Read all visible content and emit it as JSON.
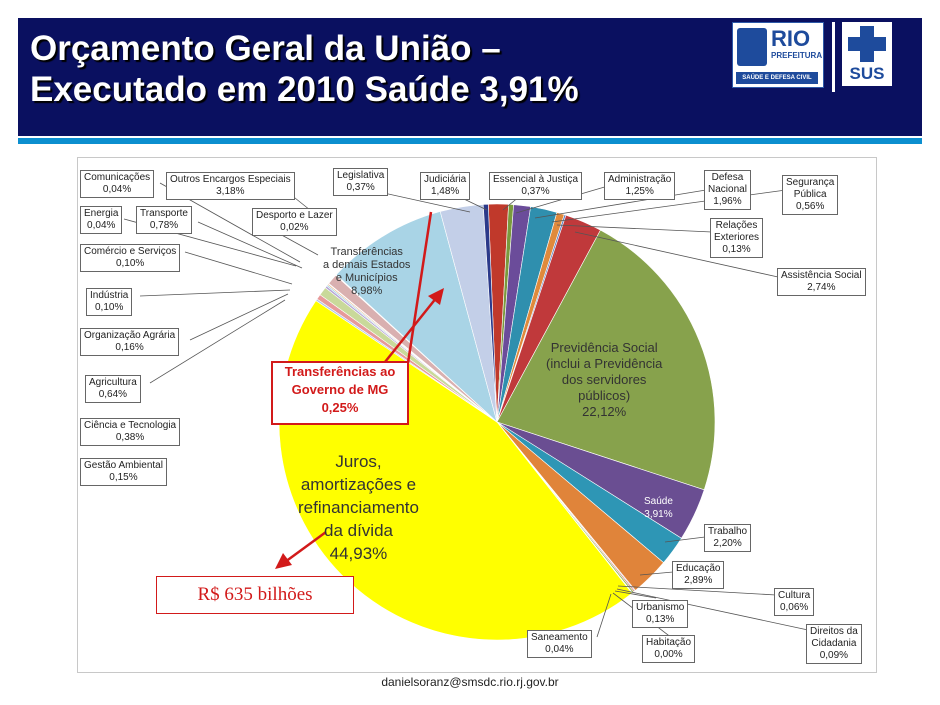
{
  "header": {
    "title_line1": "Orçamento Geral da União –",
    "title_line2": "Executado em 2010 Saúde 3,91%",
    "logo_rio": {
      "name": "RIO",
      "sub": "PREFEITURA",
      "strip": "SAÚDE E DEFESA CIVIL"
    },
    "logo_sus": {
      "name": "SUS"
    }
  },
  "colors": {
    "header_bg": "#0a1060",
    "stripe": "#0c8fcf",
    "highlight": "#d21a1a"
  },
  "chart_data": {
    "type": "pie",
    "title": "",
    "slices": [
      {
        "label": "Judiciária",
        "value": 1.48,
        "color": "#c0392b"
      },
      {
        "label": "Essencial à Justiça",
        "value": 0.37,
        "color": "#7a9a3c"
      },
      {
        "label": "Administração",
        "value": 1.25,
        "color": "#6b4c9a"
      },
      {
        "label": "Defesa Nacional",
        "value": 1.96,
        "color": "#2f8fae"
      },
      {
        "label": "Segurança Pública",
        "value": 0.56,
        "color": "#e08a3c"
      },
      {
        "label": "Relações Exteriores",
        "value": 0.13,
        "color": "#5b7fc4"
      },
      {
        "label": "Assistência Social",
        "value": 2.74,
        "color": "#c0393b"
      },
      {
        "label": "Previdência Social (inclui a Previdência dos servidores públicos)",
        "value": 22.12,
        "color": "#87a24c"
      },
      {
        "label": "Saúde",
        "value": 3.91,
        "color": "#6a4e92"
      },
      {
        "label": "Trabalho",
        "value": 2.2,
        "color": "#2e96b5"
      },
      {
        "label": "Educação",
        "value": 2.89,
        "color": "#e0843a"
      },
      {
        "label": "Cultura",
        "value": 0.06,
        "color": "#7f9fd6"
      },
      {
        "label": "Direitos da Cidadania",
        "value": 0.09,
        "color": "#d25050"
      },
      {
        "label": "Urbanismo",
        "value": 0.13,
        "color": "#9aba5a"
      },
      {
        "label": "Habitação",
        "value": 0.0,
        "color": "#8a6ab4"
      },
      {
        "label": "Saneamento",
        "value": 0.04,
        "color": "#47b0cc"
      },
      {
        "label": "Juros, amortizações e refinanciamento da dívida",
        "value": 44.93,
        "color": "#ffff00"
      },
      {
        "label": "Gestão Ambiental",
        "value": 0.15,
        "color": "#b5c7e8"
      },
      {
        "label": "Ciência e Tecnologia",
        "value": 0.38,
        "color": "#e79a9a"
      },
      {
        "label": "Agricultura",
        "value": 0.64,
        "color": "#c9d99a"
      },
      {
        "label": "Organização Agrária",
        "value": 0.16,
        "color": "#b6a6d6"
      },
      {
        "label": "Indústria",
        "value": 0.1,
        "color": "#9bd1e3"
      },
      {
        "label": "Comércio e Serviços",
        "value": 0.1,
        "color": "#f2b88a"
      },
      {
        "label": "Energia",
        "value": 0.04,
        "color": "#a7bde6"
      },
      {
        "label": "Transporte",
        "value": 0.78,
        "color": "#d9b0b0"
      },
      {
        "label": "Comunicações",
        "value": 0.04,
        "color": "#d3e0b5"
      },
      {
        "label": "Desporto e Lazer",
        "value": 0.02,
        "color": "#c7bde0"
      },
      {
        "label": "Transferências a demais Estados e Municípios",
        "value": 8.98,
        "color": "#a9d4e6"
      },
      {
        "label": "Outros Encargos Especiais",
        "value": 3.18,
        "color": "#c3cfe8"
      },
      {
        "label": "Legislativa",
        "value": 0.37,
        "color": "#2b3a8a"
      }
    ]
  },
  "labels": {
    "comunicacoes": {
      "name": "Comunicações",
      "pct": "0,04%"
    },
    "outros_encargos": {
      "name": "Outros Encargos Especiais",
      "pct": "3,18%"
    },
    "legislativa": {
      "name": "Legislativa",
      "pct": "0,37%"
    },
    "judiciaria": {
      "name": "Judiciária",
      "pct": "1,48%"
    },
    "essencial": {
      "name": "Essencial à Justiça",
      "pct": "0,37%"
    },
    "administracao": {
      "name": "Administração",
      "pct": "1,25%"
    },
    "defesa_l1": "Defesa",
    "defesa_l2": "Nacional",
    "defesa_pct": "1,96%",
    "seguranca_l1": "Segurança",
    "seguranca_l2": "Pública",
    "seguranca_pct": "0,56%",
    "relacoes_l1": "Relações",
    "relacoes_l2": "Exteriores",
    "relacoes_pct": "0,13%",
    "assistencia": {
      "name": "Assistência Social",
      "pct": "2,74%"
    },
    "energia": {
      "name": "Energia",
      "pct": "0,04%"
    },
    "transporte": {
      "name": "Transporte",
      "pct": "0,78%"
    },
    "desporto": {
      "name": "Desporto e Lazer",
      "pct": "0,02%"
    },
    "comercio": {
      "name": "Comércio e Serviços",
      "pct": "0,10%"
    },
    "industria": {
      "name": "Indústria",
      "pct": "0,10%"
    },
    "org_agraria": {
      "name": "Organização Agrária",
      "pct": "0,16%"
    },
    "agricultura": {
      "name": "Agricultura",
      "pct": "0,64%"
    },
    "ciencia": {
      "name": "Ciência e Tecnologia",
      "pct": "0,38%"
    },
    "gestao": {
      "name": "Gestão Ambiental",
      "pct": "0,15%"
    },
    "trabalho": {
      "name": "Trabalho",
      "pct": "2,20%"
    },
    "educacao": {
      "name": "Educação",
      "pct": "2,89%"
    },
    "cultura": {
      "name": "Cultura",
      "pct": "0,06%"
    },
    "urbanismo": {
      "name": "Urbanismo",
      "pct": "0,13%"
    },
    "habitacao": {
      "name": "Habitação",
      "pct": "0,00%"
    },
    "saneamento": {
      "name": "Saneamento",
      "pct": "0,04%"
    },
    "direitos_l1": "Direitos da",
    "direitos_l2": "Cidadania",
    "direitos_pct": "0,09%"
  },
  "inside": {
    "transf_l1": "Transferências",
    "transf_l2": "a demais Estados",
    "transf_l3": "e Municípios",
    "transf_pct": "8,98%",
    "prev_l1": "Previdência Social",
    "prev_l2": "(inclui a Previdência",
    "prev_l3": "dos servidores",
    "prev_l4": "públicos)",
    "prev_pct": "22,12%",
    "saude": "Saúde",
    "saude_pct": "3,91%",
    "juros_l1": "Juros,",
    "juros_l2": "amortizações e",
    "juros_l3": "refinanciamento",
    "juros_l4": "da dívida",
    "juros_pct": "44,93%"
  },
  "annotations": {
    "mg_l1": "Transferências ao",
    "mg_l2": "Governo de MG",
    "mg_pct": "0,25%",
    "money": "R$ 635 bilhões"
  },
  "footer": {
    "email": "danielsoranz@smsdc.rio.rj.gov.br"
  }
}
